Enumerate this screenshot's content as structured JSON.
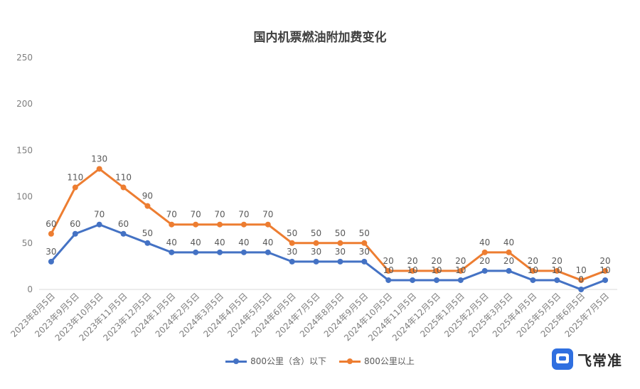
{
  "chart_data": {
    "type": "line",
    "title": "国内机票燃油附加费变化",
    "categories": [
      "2023年8月5日",
      "2023年9月5日",
      "2023年10月5日",
      "2023年11月5日",
      "2023年12月5日",
      "2024年1月5日",
      "2024年2月5日",
      "2024年3月5日",
      "2024年4月5日",
      "2024年5月5日",
      "2024年6月5日",
      "2024年7月5日",
      "2024年8月5日",
      "2024年9月5日",
      "2024年10月5日",
      "2024年11月5日",
      "2024年12月5日",
      "2025年1月5日",
      "2025年2月5日",
      "2025年3月5日",
      "2025年4月5日",
      "2025年5月5日",
      "2025年6月5日",
      "2025年7月5日"
    ],
    "series": [
      {
        "name": "800公里（含）以下",
        "color": "#4472c4",
        "values": [
          30,
          60,
          70,
          60,
          50,
          40,
          40,
          40,
          40,
          40,
          30,
          30,
          30,
          30,
          10,
          10,
          10,
          10,
          20,
          20,
          10,
          10,
          0,
          10
        ]
      },
      {
        "name": "800公里以上",
        "color": "#ed7d31",
        "values": [
          60,
          110,
          130,
          110,
          90,
          70,
          70,
          70,
          70,
          70,
          50,
          50,
          50,
          50,
          20,
          20,
          20,
          20,
          40,
          40,
          20,
          20,
          10,
          20
        ]
      }
    ],
    "yticks": [
      0,
      50,
      100,
      150,
      200,
      250
    ],
    "ylim": [
      0,
      250
    ],
    "grid": false,
    "legend_position": "bottom"
  },
  "logo": {
    "text": "飞常准"
  }
}
